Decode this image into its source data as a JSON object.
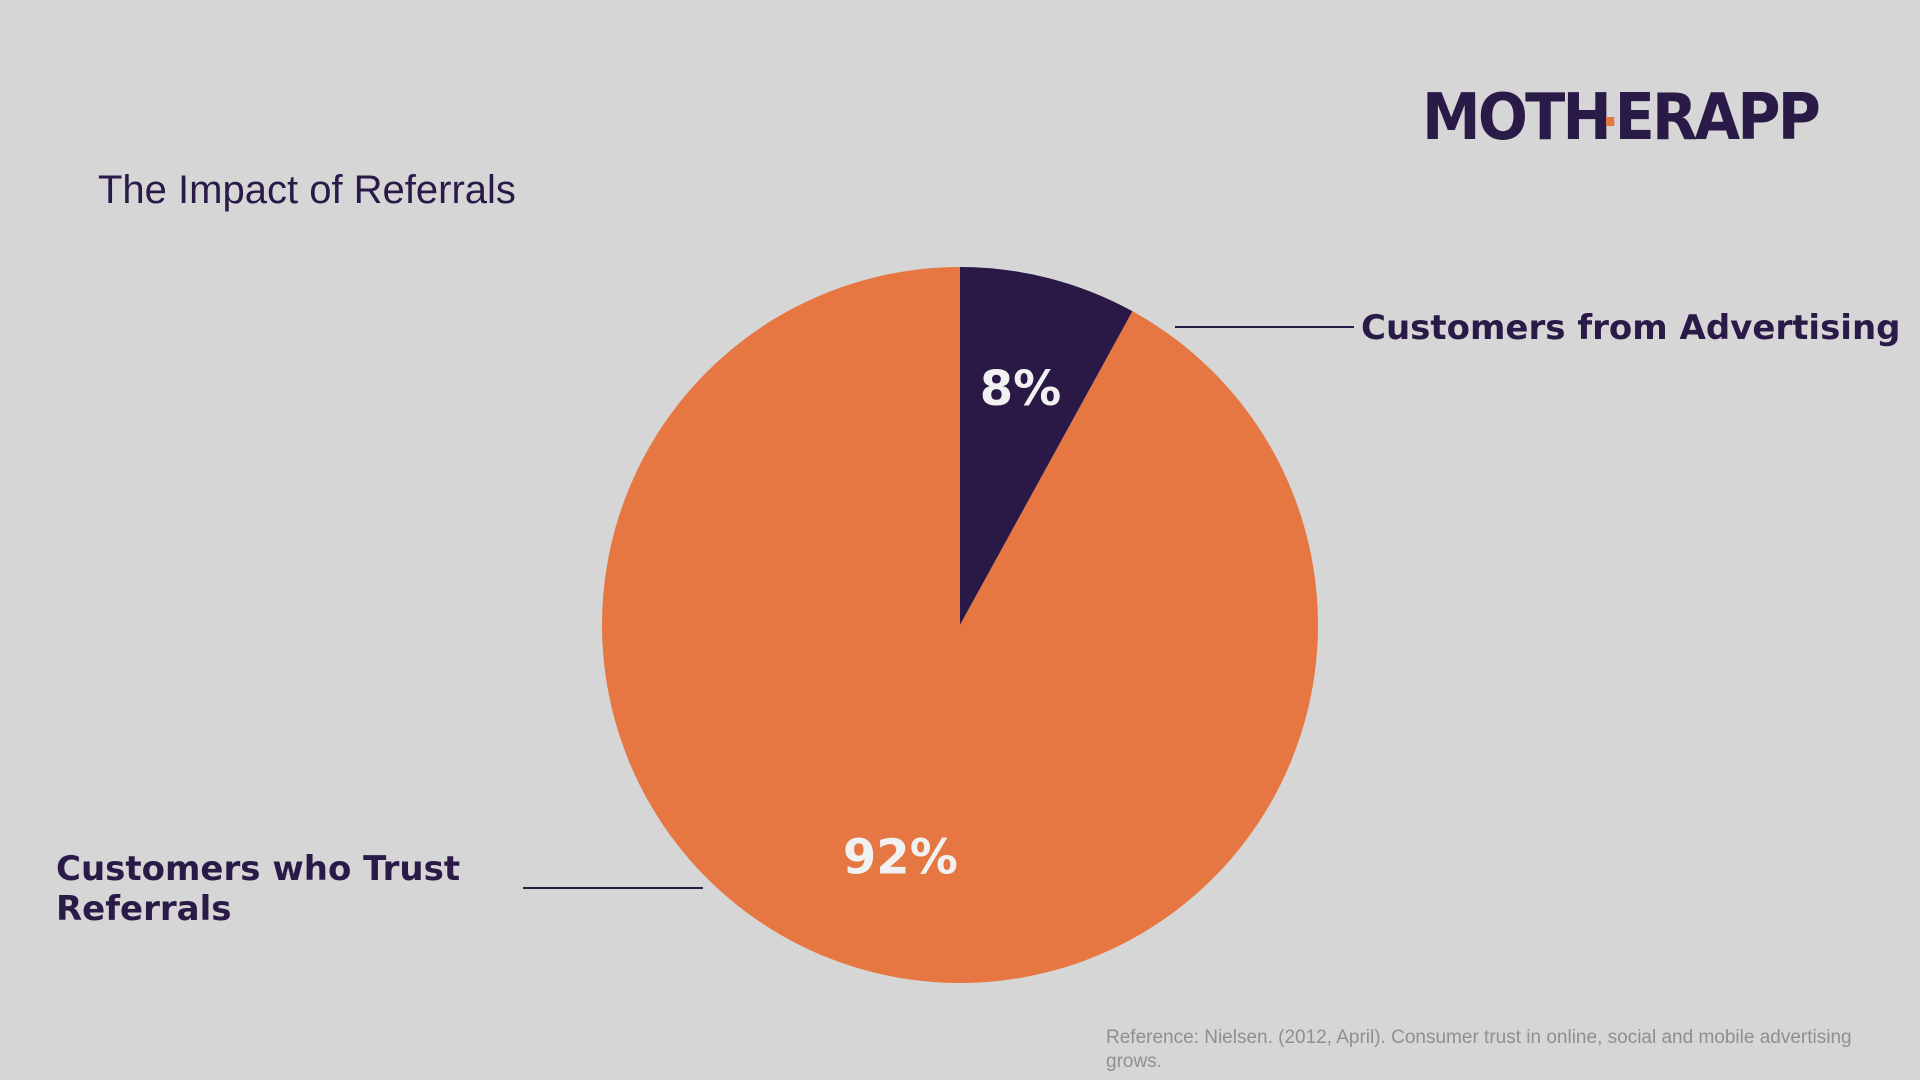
{
  "logo": {
    "text_a": "MOTH",
    "text_b": "ERAPP",
    "accent_color": "#e77741",
    "color": "#2a1a47"
  },
  "title": "The Impact of Referrals",
  "reference": "Reference: Nielsen. (2012, April). Consumer trust in online, social and mobile advertising grows.",
  "chart_data": {
    "type": "pie",
    "title": "The Impact of Referrals",
    "slices": [
      {
        "label": "Customers from Advertising",
        "value": 8,
        "display": "8%",
        "color": "#2a1847"
      },
      {
        "label": "Customers who Trust Referrals",
        "value": 92,
        "display": "92%",
        "color": "#e67742"
      }
    ],
    "start_angle": "12 o'clock",
    "direction": "clockwise"
  }
}
